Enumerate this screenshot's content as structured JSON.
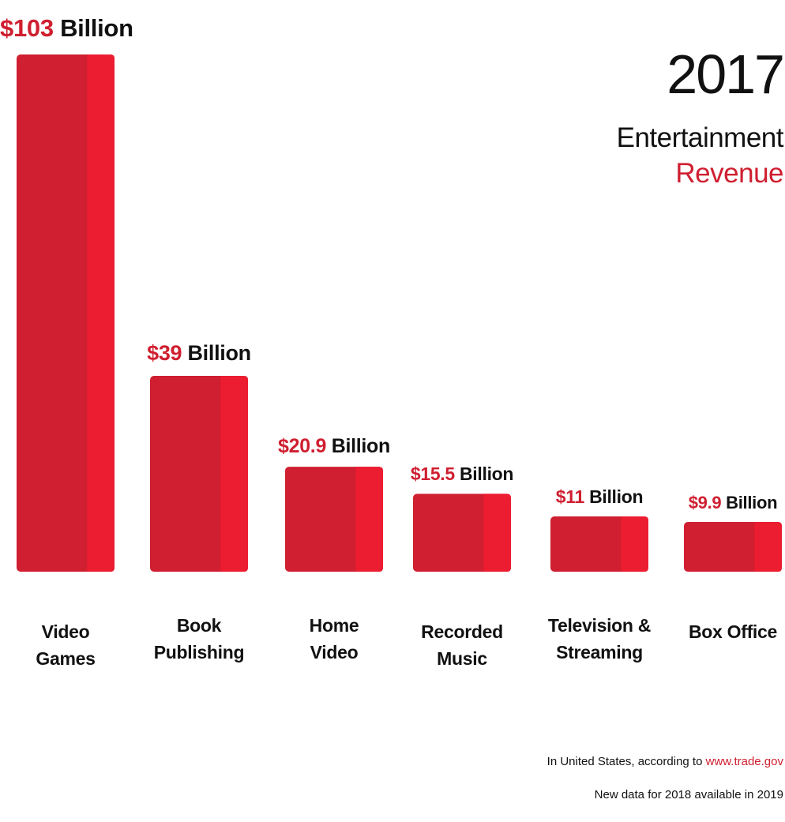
{
  "title": {
    "year": "2017",
    "line1": "Entertainment",
    "line2": "Revenue"
  },
  "footnotes": {
    "source_prefix": "In United States, according to",
    "source_link": "www.trade.gov",
    "note": "New data for 2018 available in 2019"
  },
  "colors": {
    "bar_main": "#cf1f30",
    "bar_highlight": "#ec1c31",
    "amount_text": "#cf1f30",
    "text": "#111111"
  },
  "chart_data": {
    "type": "bar",
    "title": "2017 Entertainment Revenue",
    "xlabel": "",
    "ylabel": "",
    "unit": "Billion USD",
    "grid": false,
    "ylim": [
      0,
      103
    ],
    "categories": [
      [
        "Video",
        "Games"
      ],
      [
        "Book",
        "Publishing"
      ],
      [
        "Home",
        "Video"
      ],
      [
        "Recorded",
        "Music"
      ],
      [
        "Television &",
        "Streaming"
      ],
      [
        "Box Office"
      ]
    ],
    "values": [
      103,
      39,
      20.9,
      15.5,
      11,
      9.9
    ],
    "value_labels": [
      {
        "amount": "$103",
        "unit": "Billion"
      },
      {
        "amount": "$39",
        "unit": "Billion"
      },
      {
        "amount": "$20.9",
        "unit": "Billion"
      },
      {
        "amount": "$15.5",
        "unit": "Billion"
      },
      {
        "amount": "$11",
        "unit": "Billion"
      },
      {
        "amount": "$9.9",
        "unit": "Billion"
      }
    ]
  }
}
